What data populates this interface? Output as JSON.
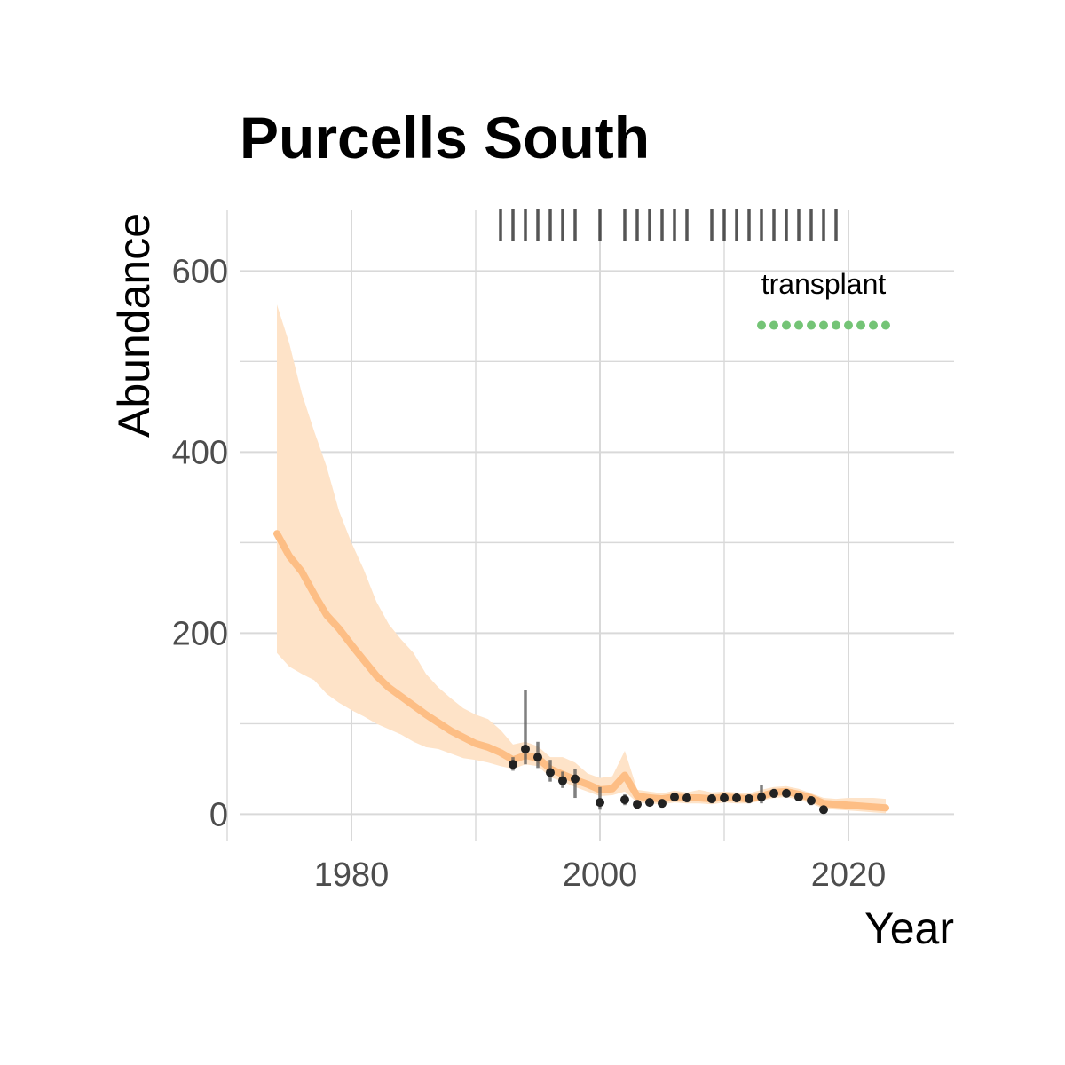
{
  "chart_data": {
    "type": "line",
    "title": "Purcells South",
    "xlabel": "Year",
    "ylabel": "Abundance",
    "xlim": [
      1971,
      2028.5
    ],
    "ylim": [
      -30,
      667
    ],
    "x_ticks": [
      1980,
      2000,
      2020
    ],
    "x_minor": [
      1970,
      1990,
      2010
    ],
    "y_ticks": [
      0,
      200,
      400,
      600
    ],
    "y_minor": [
      100,
      300,
      500
    ],
    "grid": true,
    "colors": {
      "estimate": "#fdbe85",
      "ribbon": "#fee3c8",
      "observed": "#222222",
      "error_bar": "#555555",
      "survey_ticks": "#2b2b2b",
      "transplant": "#74c476",
      "grid": "#d9d9d9"
    },
    "estimate": {
      "x": [
        1974,
        1975,
        1976,
        1977,
        1978,
        1979,
        1980,
        1981,
        1982,
        1983,
        1984,
        1985,
        1986,
        1987,
        1988,
        1989,
        1990,
        1991,
        1992,
        1993,
        1994,
        1995,
        1996,
        1997,
        1998,
        1999,
        2000,
        2001,
        2002,
        2003,
        2004,
        2005,
        2006,
        2007,
        2008,
        2009,
        2010,
        2011,
        2012,
        2013,
        2014,
        2015,
        2016,
        2017,
        2018,
        2019,
        2020,
        2021,
        2022,
        2023
      ],
      "y": [
        310,
        285,
        268,
        243,
        220,
        205,
        187,
        170,
        153,
        140,
        130,
        120,
        110,
        101,
        92,
        85,
        78,
        74,
        68,
        60,
        65,
        62,
        50,
        44,
        38,
        33,
        27,
        28,
        43,
        20,
        18,
        17,
        19,
        18,
        18,
        17,
        19,
        18,
        17,
        20,
        24,
        25,
        22,
        18,
        12,
        11,
        10,
        9,
        8,
        7
      ],
      "lower": [
        178,
        163,
        155,
        148,
        133,
        123,
        115,
        108,
        100,
        94,
        88,
        80,
        74,
        72,
        67,
        62,
        60,
        57,
        53,
        50,
        55,
        53,
        41,
        36,
        30,
        25,
        20,
        21,
        25,
        13,
        12,
        11,
        13,
        12,
        12,
        11,
        13,
        12,
        12,
        15,
        18,
        19,
        16,
        12,
        6,
        5,
        4,
        3,
        2,
        1
      ],
      "upper": [
        563,
        520,
        465,
        423,
        384,
        335,
        300,
        270,
        235,
        210,
        193,
        178,
        155,
        140,
        128,
        117,
        110,
        105,
        93,
        77,
        80,
        75,
        63,
        63,
        57,
        45,
        40,
        42,
        70,
        27,
        25,
        23,
        26,
        24,
        27,
        24,
        25,
        24,
        23,
        27,
        30,
        31,
        28,
        23,
        18,
        17,
        18,
        18,
        18,
        17
      ]
    },
    "observed": {
      "x": [
        1993,
        1994,
        1995,
        1996,
        1997,
        1998,
        2000,
        2002,
        2003,
        2004,
        2005,
        2006,
        2007,
        2009,
        2010,
        2011,
        2012,
        2013,
        2014,
        2015,
        2016,
        2017,
        2018
      ],
      "y": [
        55,
        72,
        63,
        46,
        37,
        39,
        13,
        16,
        11,
        13,
        12,
        19,
        18,
        17,
        18,
        18,
        17,
        19,
        23,
        23,
        19,
        15,
        5
      ],
      "lower": [
        48,
        55,
        51,
        36,
        29,
        18,
        5,
        10,
        7,
        9,
        8,
        14,
        13,
        12,
        13,
        13,
        12,
        12,
        18,
        19,
        15,
        10,
        2
      ],
      "upper": [
        63,
        137,
        80,
        60,
        47,
        50,
        30,
        22,
        15,
        17,
        16,
        24,
        23,
        22,
        23,
        23,
        22,
        32,
        28,
        27,
        23,
        20,
        8
      ]
    },
    "survey_years": [
      1992,
      1993,
      1994,
      1995,
      1996,
      1997,
      1998,
      2000,
      2002,
      2003,
      2004,
      2005,
      2006,
      2007,
      2009,
      2010,
      2011,
      2012,
      2013,
      2014,
      2015,
      2016,
      2017,
      2018,
      2019
    ],
    "annotations": [
      {
        "label": "transplant",
        "x_start": 2013,
        "x_end": 2023,
        "y_dots": 540,
        "y_label": 575
      }
    ]
  }
}
